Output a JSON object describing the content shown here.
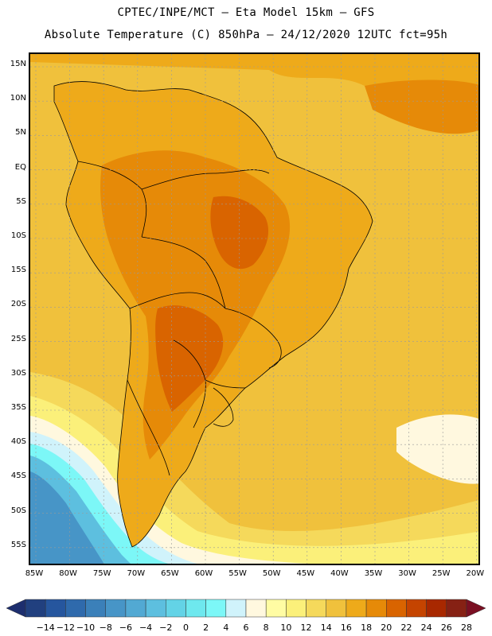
{
  "header": {
    "line1": "CPTEC/INPE/MCT –   Eta Model 15km – GFS",
    "line2": "Absolute Temperature (C) 850hPa – 24/12/2020 12UTC fct=95h"
  },
  "axes": {
    "lat_labels": [
      "15N",
      "10N",
      "5N",
      "EQ",
      "5S",
      "10S",
      "15S",
      "20S",
      "25S",
      "30S",
      "35S",
      "40S",
      "45S",
      "50S",
      "55S"
    ],
    "lon_labels": [
      "85W",
      "80W",
      "75W",
      "70W",
      "65W",
      "60W",
      "55W",
      "50W",
      "45W",
      "40W",
      "35W",
      "30W",
      "25W",
      "20W"
    ]
  },
  "colorbar": {
    "labels": [
      "-14",
      "-12",
      "-10",
      "-8",
      "-6",
      "-4",
      "-2",
      "0",
      "2",
      "4",
      "6",
      "8",
      "10",
      "12",
      "14",
      "16",
      "18",
      "20",
      "22",
      "24",
      "26",
      "28"
    ],
    "colors": [
      "#21407f",
      "#26569e",
      "#2f6aac",
      "#3b80b9",
      "#4795c7",
      "#52a9d3",
      "#5dbfdf",
      "#63d3e6",
      "#6ee8ee",
      "#7cf7f7",
      "#d0f3fb",
      "#fff8df",
      "#fffca3",
      "#fbf07a",
      "#f5d95b",
      "#f0c13c",
      "#eeaa1a",
      "#e68a08",
      "#d96400",
      "#c54400",
      "#a82800",
      "#862114"
    ],
    "under_color": "#1d2e6e",
    "over_color": "#7a0f22"
  },
  "map": {
    "ocean_color": "#f0c13c",
    "ocean_north_color": "#eeaa1a",
    "land_color": "#eeaa1a",
    "interior_color": "#e68a08",
    "hot_core_color": "#d96400",
    "south_cool_1": "#f5d95b",
    "south_cool_2": "#fbf07a",
    "south_cool_3": "#fff8df",
    "polar_1": "#d0f3fb",
    "polar_2": "#7cf7f7",
    "polar_3": "#5dbfdf",
    "polar_4": "#4795c7"
  }
}
